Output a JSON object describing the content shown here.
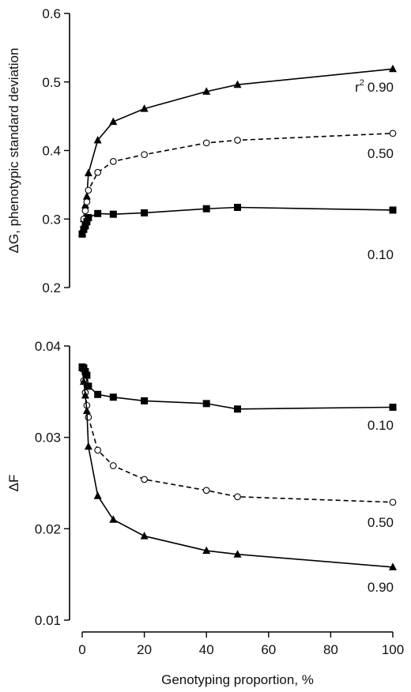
{
  "chart_data": [
    {
      "type": "line",
      "panel": "top",
      "ylabel": "ΔG, phenotypic standard deviation",
      "xlim": [
        0,
        100
      ],
      "ylim": [
        0.2,
        0.6
      ],
      "yticks": [
        "0.2",
        "0.3",
        "0.4",
        "0.5",
        "0.6"
      ],
      "legend_prefix": "r",
      "legend_superscript": "2",
      "series": [
        {
          "name": "0.90",
          "marker": "triangle",
          "dash": "solid",
          "x": [
            0,
            0.5,
            1,
            1.5,
            2,
            5,
            10,
            20,
            40,
            50,
            100
          ],
          "y": [
            0.28,
            0.3,
            0.32,
            0.333,
            0.367,
            0.415,
            0.442,
            0.461,
            0.486,
            0.496,
            0.519
          ]
        },
        {
          "name": "0.50",
          "marker": "circle-open",
          "dash": "dashed",
          "x": [
            0,
            0.5,
            1,
            1.5,
            2,
            5,
            10,
            20,
            40,
            50,
            100
          ],
          "y": [
            0.28,
            0.3,
            0.312,
            0.325,
            0.342,
            0.368,
            0.384,
            0.394,
            0.411,
            0.415,
            0.425
          ]
        },
        {
          "name": "0.10",
          "marker": "square",
          "dash": "solid",
          "x": [
            0,
            0.5,
            1,
            1.5,
            2,
            5,
            10,
            20,
            40,
            50,
            100
          ],
          "y": [
            0.278,
            0.285,
            0.29,
            0.296,
            0.302,
            0.308,
            0.307,
            0.309,
            0.315,
            0.317,
            0.313
          ]
        }
      ]
    },
    {
      "type": "line",
      "panel": "bottom",
      "xlabel": "Genotyping proportion, %",
      "ylabel": "ΔF",
      "xlim": [
        0,
        100
      ],
      "ylim": [
        0.01,
        0.04
      ],
      "xticks": [
        "0",
        "20",
        "40",
        "60",
        "80",
        "100"
      ],
      "yticks": [
        "0.01",
        "0.02",
        "0.03",
        "0.04"
      ],
      "series": [
        {
          "name": "0.10",
          "marker": "square",
          "dash": "solid",
          "x": [
            0,
            0.5,
            1,
            1.5,
            2,
            5,
            10,
            20,
            40,
            50,
            100
          ],
          "y": [
            0.0377,
            0.0376,
            0.0372,
            0.0368,
            0.0356,
            0.0347,
            0.0344,
            0.034,
            0.0337,
            0.0331,
            0.0333
          ]
        },
        {
          "name": "0.50",
          "marker": "circle-open",
          "dash": "dashed",
          "x": [
            0,
            0.5,
            1,
            1.5,
            2,
            5,
            10,
            20,
            40,
            50,
            100
          ],
          "y": [
            0.0375,
            0.0362,
            0.0349,
            0.0335,
            0.0322,
            0.0286,
            0.0269,
            0.0254,
            0.0242,
            0.0235,
            0.0229
          ]
        },
        {
          "name": "0.90",
          "marker": "triangle",
          "dash": "solid",
          "x": [
            0,
            0.5,
            1,
            1.5,
            2,
            5,
            10,
            20,
            40,
            50,
            100
          ],
          "y": [
            0.0376,
            0.0361,
            0.0346,
            0.0329,
            0.029,
            0.0236,
            0.021,
            0.0192,
            0.0176,
            0.0172,
            0.0158
          ]
        }
      ]
    }
  ]
}
